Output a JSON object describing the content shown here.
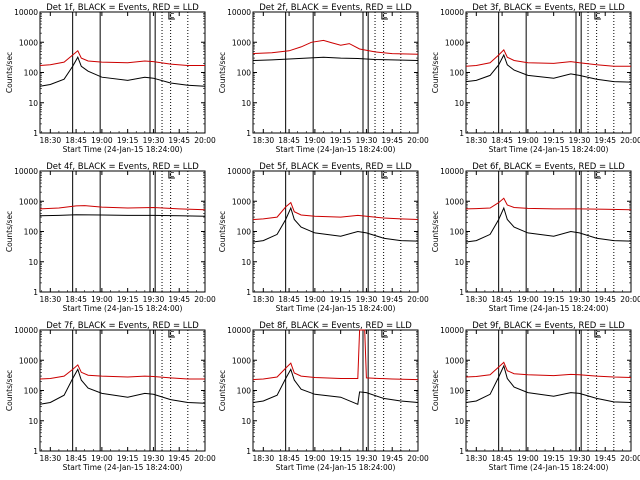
{
  "colors": {
    "background": "#ffffff",
    "events": "#000000",
    "lld": "#cc0000",
    "axes": "#000000"
  },
  "panel_titles": [
    "Det 1f, BLACK = Events, RED = LLD",
    "Det 2f, BLACK = Events, RED = LLD",
    "Det 3f, BLACK = Events, RED = LLD",
    "Det 4f, BLACK = Events, RED = LLD",
    "Det 5f, BLACK = Events, RED = LLD",
    "Det 6f, BLACK = Events, RED = LLD",
    "Det 7f, BLACK = Events, RED = LLD",
    "Det 8f, BLACK = Events, RED = LLD",
    "Det 9f, BLACK = Events, RED = LLD"
  ],
  "chart_data": {
    "type": "line",
    "layout": "3x3 grid",
    "y_scale": "log",
    "ylim": [
      1,
      10000
    ],
    "y_ticks": [
      1,
      10,
      100,
      1000,
      10000
    ],
    "y_tick_labels": [
      "1",
      "10",
      "100",
      "1000",
      "10000"
    ],
    "ylabel": "Counts/sec",
    "x_tick_labels": [
      "18:30",
      "18:45",
      "19:00",
      "19:15",
      "19:30",
      "19:45",
      "20:00"
    ],
    "xlabel": "Start Time (24-Jan-15 18:24:00)",
    "xlim": [
      "18:24",
      "20:00"
    ],
    "grid": false,
    "markers": {
      "solid_lines": [
        "18:43",
        "18:59",
        "19:28",
        "19:31"
      ],
      "dotted_lines": [
        "19:35",
        "19:40",
        "19:50"
      ],
      "flag": {
        "time": "19:39",
        "label": "C"
      }
    },
    "panels": [
      {
        "title": "Det 1f, BLACK = Events, RED = LLD",
        "series": [
          {
            "color": "#cc0000",
            "x": [
              "18:24",
              "18:30",
              "18:38",
              "18:43",
              "18:46",
              "18:48",
              "18:52",
              "19:00",
              "19:15",
              "19:25",
              "19:30",
              "19:40",
              "19:50",
              "20:00"
            ],
            "y": [
              170,
              180,
              220,
              380,
              520,
              300,
              240,
              220,
              210,
              240,
              230,
              190,
              170,
              170
            ]
          },
          {
            "color": "#000000",
            "x": [
              "18:24",
              "18:30",
              "18:38",
              "18:43",
              "18:46",
              "18:48",
              "18:52",
              "19:00",
              "19:15",
              "19:25",
              "19:30",
              "19:40",
              "19:50",
              "20:00"
            ],
            "y": [
              35,
              40,
              60,
              160,
              320,
              160,
              110,
              70,
              55,
              70,
              65,
              45,
              38,
              35
            ]
          }
        ]
      },
      {
        "title": "Det 2f, BLACK = Events, RED = LLD",
        "series": [
          {
            "color": "#cc0000",
            "x": [
              "18:24",
              "18:35",
              "18:45",
              "18:52",
              "18:58",
              "19:05",
              "19:10",
              "19:15",
              "19:20",
              "19:26",
              "19:35",
              "19:45",
              "20:00"
            ],
            "y": [
              420,
              450,
              520,
              700,
              1000,
              1150,
              950,
              800,
              900,
              600,
              480,
              420,
              400
            ]
          },
          {
            "color": "#000000",
            "x": [
              "18:24",
              "18:35",
              "18:45",
              "18:55",
              "19:05",
              "19:15",
              "19:25",
              "19:35",
              "19:45",
              "20:00"
            ],
            "y": [
              250,
              260,
              280,
              300,
              320,
              300,
              290,
              270,
              260,
              250
            ]
          }
        ]
      },
      {
        "title": "Det 3f, BLACK = Events, RED = LLD",
        "series": [
          {
            "color": "#cc0000",
            "x": [
              "18:24",
              "18:30",
              "18:38",
              "18:43",
              "18:46",
              "18:48",
              "18:52",
              "19:00",
              "19:15",
              "19:25",
              "19:30",
              "19:40",
              "19:50",
              "20:00"
            ],
            "y": [
              160,
              170,
              210,
              380,
              560,
              320,
              250,
              210,
              200,
              230,
              210,
              180,
              160,
              160
            ]
          },
          {
            "color": "#000000",
            "x": [
              "18:24",
              "18:30",
              "18:38",
              "18:43",
              "18:46",
              "18:48",
              "18:52",
              "19:00",
              "19:15",
              "19:25",
              "19:30",
              "19:40",
              "19:50",
              "20:00"
            ],
            "y": [
              50,
              55,
              80,
              180,
              380,
              180,
              120,
              80,
              65,
              90,
              80,
              60,
              50,
              48
            ]
          }
        ]
      },
      {
        "title": "Det 4f, BLACK = Events, RED = LLD",
        "series": [
          {
            "color": "#cc0000",
            "x": [
              "18:24",
              "18:35",
              "18:45",
              "18:50",
              "19:00",
              "19:15",
              "19:30",
              "19:45",
              "20:00"
            ],
            "y": [
              560,
              600,
              700,
              720,
              640,
              600,
              620,
              560,
              520
            ]
          },
          {
            "color": "#000000",
            "x": [
              "18:24",
              "18:35",
              "18:45",
              "19:00",
              "19:15",
              "19:30",
              "19:45",
              "20:00"
            ],
            "y": [
              330,
              340,
              360,
              350,
              340,
              340,
              330,
              320
            ]
          }
        ]
      },
      {
        "title": "Det 5f, BLACK = Events, RED = LLD",
        "series": [
          {
            "color": "#cc0000",
            "x": [
              "18:24",
              "18:30",
              "18:38",
              "18:43",
              "18:46",
              "18:48",
              "18:52",
              "19:00",
              "19:15",
              "19:25",
              "19:30",
              "19:40",
              "19:50",
              "20:00"
            ],
            "y": [
              250,
              260,
              300,
              650,
              900,
              450,
              350,
              320,
              300,
              340,
              320,
              280,
              260,
              250
            ]
          },
          {
            "color": "#000000",
            "x": [
              "18:24",
              "18:30",
              "18:38",
              "18:43",
              "18:46",
              "18:48",
              "18:52",
              "19:00",
              "19:15",
              "19:25",
              "19:30",
              "19:40",
              "19:50",
              "20:00"
            ],
            "y": [
              45,
              50,
              80,
              250,
              600,
              250,
              140,
              90,
              70,
              100,
              90,
              60,
              50,
              48
            ]
          }
        ]
      },
      {
        "title": "Det 6f, BLACK = Events, RED = LLD",
        "series": [
          {
            "color": "#cc0000",
            "x": [
              "18:24",
              "18:30",
              "18:38",
              "18:43",
              "18:46",
              "18:48",
              "18:52",
              "19:00",
              "19:15",
              "19:30",
              "19:45",
              "20:00"
            ],
            "y": [
              560,
              570,
              600,
              900,
              1250,
              750,
              620,
              580,
              560,
              560,
              540,
              520
            ]
          },
          {
            "color": "#000000",
            "x": [
              "18:24",
              "18:30",
              "18:38",
              "18:43",
              "18:46",
              "18:48",
              "18:52",
              "19:00",
              "19:15",
              "19:25",
              "19:30",
              "19:40",
              "19:50",
              "20:00"
            ],
            "y": [
              45,
              50,
              80,
              250,
              600,
              250,
              140,
              90,
              70,
              100,
              90,
              60,
              50,
              48
            ]
          }
        ]
      },
      {
        "title": "Det 7f, BLACK = Events, RED = LLD",
        "series": [
          {
            "color": "#cc0000",
            "x": [
              "18:24",
              "18:30",
              "18:38",
              "18:43",
              "18:46",
              "18:48",
              "18:52",
              "19:00",
              "19:15",
              "19:25",
              "19:30",
              "19:40",
              "19:50",
              "20:00"
            ],
            "y": [
              240,
              250,
              300,
              500,
              700,
              400,
              320,
              300,
              280,
              300,
              290,
              260,
              240,
              240
            ]
          },
          {
            "color": "#000000",
            "x": [
              "18:24",
              "18:30",
              "18:38",
              "18:43",
              "18:46",
              "18:48",
              "18:52",
              "19:00",
              "19:15",
              "19:25",
              "19:30",
              "19:40",
              "19:50",
              "20:00"
            ],
            "y": [
              35,
              40,
              70,
              250,
              500,
              220,
              120,
              80,
              60,
              80,
              75,
              50,
              40,
              38
            ]
          }
        ]
      },
      {
        "title": "Det 8f, BLACK = Events, RED = LLD",
        "series": [
          {
            "color": "#cc0000",
            "x": [
              "18:24",
              "18:30",
              "18:38",
              "18:43",
              "18:46",
              "18:48",
              "18:52",
              "19:00",
              "19:15",
              "19:25",
              "19:26",
              "19:29",
              "19:30",
              "19:45",
              "20:00"
            ],
            "y": [
              230,
              240,
              280,
              550,
              800,
              380,
              300,
              270,
              250,
              250,
              10000,
              10000,
              260,
              240,
              230
            ]
          },
          {
            "color": "#000000",
            "x": [
              "18:24",
              "18:30",
              "18:38",
              "18:43",
              "18:46",
              "18:48",
              "18:52",
              "19:00",
              "19:15",
              "19:25",
              "19:26",
              "19:30",
              "19:40",
              "19:50",
              "20:00"
            ],
            "y": [
              40,
              45,
              70,
              250,
              500,
              220,
              110,
              75,
              60,
              35,
              90,
              85,
              55,
              45,
              40
            ]
          }
        ]
      },
      {
        "title": "Det 9f, BLACK = Events, RED = LLD",
        "series": [
          {
            "color": "#cc0000",
            "x": [
              "18:24",
              "18:30",
              "18:38",
              "18:43",
              "18:46",
              "18:48",
              "18:52",
              "19:00",
              "19:15",
              "19:25",
              "19:30",
              "19:40",
              "19:50",
              "20:00"
            ],
            "y": [
              280,
              290,
              330,
              600,
              850,
              450,
              360,
              330,
              310,
              340,
              330,
              300,
              280,
              270
            ]
          },
          {
            "color": "#000000",
            "x": [
              "18:24",
              "18:30",
              "18:38",
              "18:43",
              "18:46",
              "18:48",
              "18:52",
              "19:00",
              "19:15",
              "19:25",
              "19:30",
              "19:40",
              "19:50",
              "20:00"
            ],
            "y": [
              40,
              45,
              75,
              280,
              650,
              250,
              130,
              85,
              65,
              85,
              80,
              55,
              42,
              40
            ]
          }
        ]
      }
    ]
  }
}
